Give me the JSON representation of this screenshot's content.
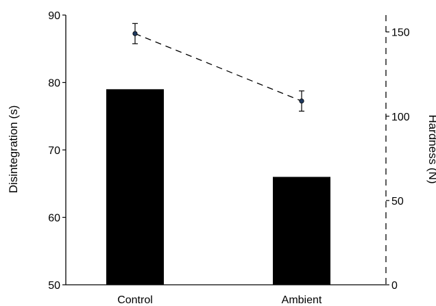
{
  "chart_data": {
    "type": "bar",
    "categories": [
      "Control",
      "Ambient"
    ],
    "series": [
      {
        "axis": "left",
        "mark": "bar",
        "values": [
          79,
          66
        ],
        "color": "#000000"
      },
      {
        "axis": "right",
        "mark": "line",
        "line_style": "dashed",
        "values": [
          149,
          109
        ],
        "error": [
          6,
          6
        ],
        "color": "#000000",
        "marker_color": "#1f3a5f"
      }
    ],
    "ylabel": "Disintegration (s)",
    "ylim": [
      50,
      90
    ],
    "yticks": [
      "50",
      "60",
      "70",
      "80",
      "90"
    ],
    "y2label": "Hardness (N)",
    "y2lim": [
      0,
      160
    ],
    "y2ticks": [
      "0",
      "50",
      "100",
      "150"
    ],
    "y2_axis_style": "dashed",
    "grid": false,
    "legend": "none"
  }
}
